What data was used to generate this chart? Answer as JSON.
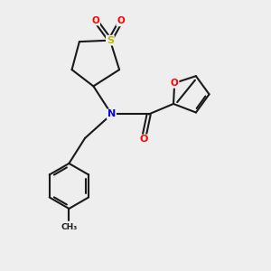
{
  "bg_color": "#eeeeee",
  "bond_color": "#1a1a1a",
  "atom_colors": {
    "S": "#b8b800",
    "O": "#ff0000",
    "N": "#0000ee",
    "C": "#1a1a1a"
  },
  "line_width": 1.5,
  "figsize": [
    3.0,
    3.0
  ],
  "dpi": 100
}
